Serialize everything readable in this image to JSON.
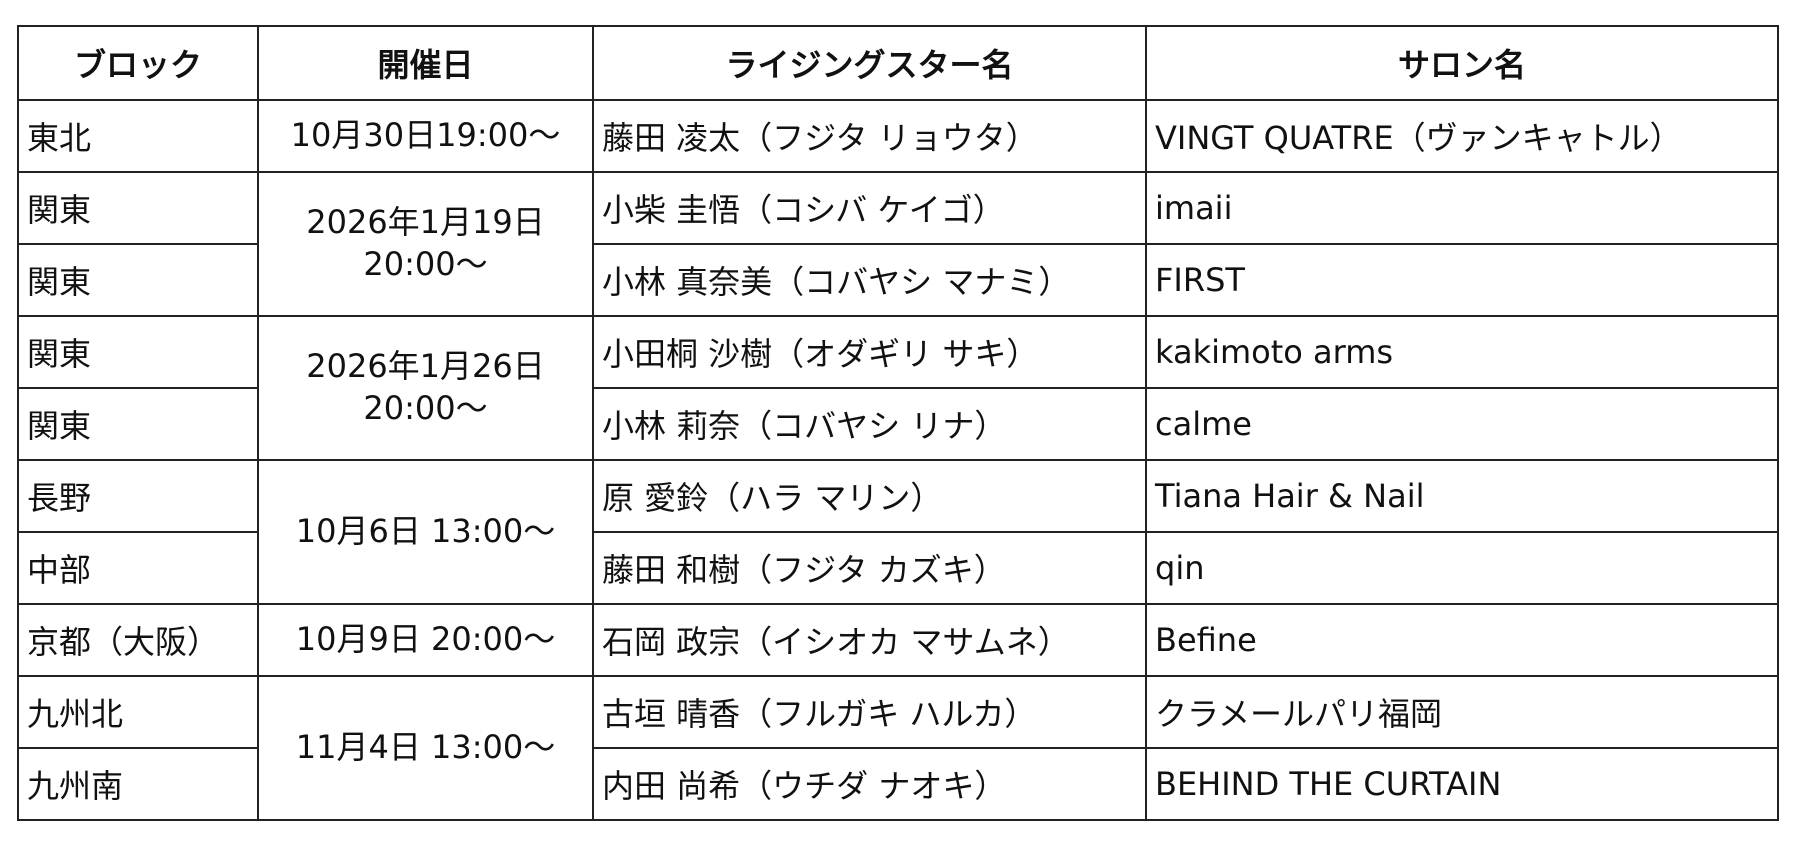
{
  "headers": [
    "ブロック",
    "開催日",
    "ライジングスター名",
    "サロン名"
  ],
  "rows": [
    {
      "block": "東北",
      "date": "10月30日19:00〜",
      "star": "藤田 凌太（フジタ リョウタ）",
      "salon": "VINGT QUATRE（ヴァンキャトル）"
    },
    {
      "block": "関東",
      "date_line1": "2026年1月19日",
      "date_line2": "20:00〜",
      "star": "小柴 圭悟（コシバ ケイゴ）",
      "salon": "imaii"
    },
    {
      "block": "関東",
      "star": "小林 真奈美（コバヤシ マナミ）",
      "salon": "FIRST"
    },
    {
      "block": "関東",
      "date_line1": "2026年1月26日",
      "date_line2": "20:00〜",
      "star": "小田桐 沙樹（オダギリ サキ）",
      "salon": "kakimoto arms"
    },
    {
      "block": "関東",
      "star": "小林 莉奈（コバヤシ リナ）",
      "salon": "calme"
    },
    {
      "block": "長野",
      "date": "10月6日 13:00〜",
      "star": "原 愛鈴（ハラ マリン）",
      "salon": "Tiana Hair & Nail"
    },
    {
      "block": "中部",
      "star": "藤田 和樹（フジタ カズキ）",
      "salon": "qin"
    },
    {
      "block": "京都（大阪）",
      "date": "10月9日 20:00〜",
      "star": "石岡 政宗（イシオカ マサムネ）",
      "salon": "Befine"
    },
    {
      "block": "九州北",
      "date": "11月4日 13:00〜",
      "star": "古垣 晴香（フルガキ ハルカ）",
      "salon": "クラメールパリ福岡"
    },
    {
      "block": "九州南",
      "star": "内田 尚希（ウチダ ナオキ）",
      "salon": "BEHIND THE CURTAIN"
    }
  ]
}
